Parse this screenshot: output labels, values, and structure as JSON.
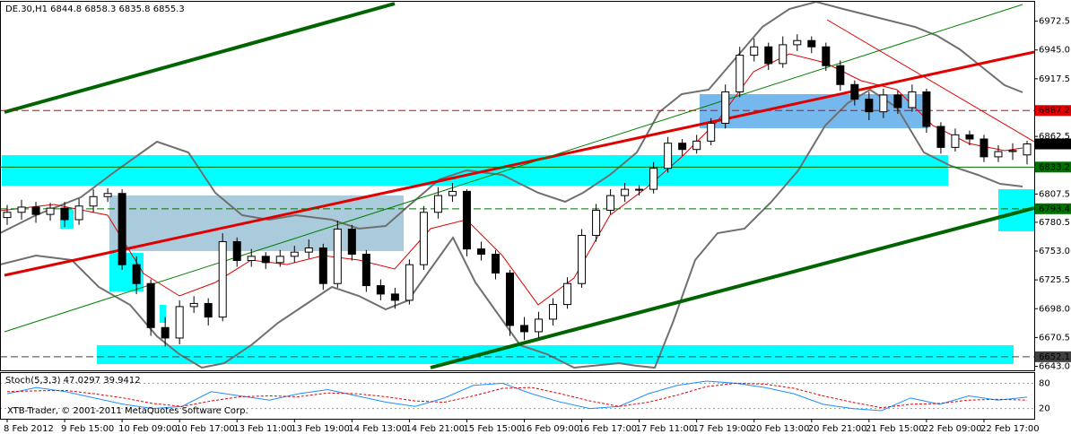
{
  "chart_data": [
    {
      "type": "candlestick",
      "symbol": "DE.30,H1",
      "categories": [
        "8 Feb 2012",
        null,
        null,
        null,
        "9 Feb 15:00",
        null,
        null,
        null,
        "10 Feb 09:00",
        null,
        null,
        null,
        "10 Feb 17:00",
        null,
        null,
        null,
        "13 Feb 11:00",
        null,
        null,
        null,
        "13 Feb 19:00",
        null,
        null,
        null,
        "14 Feb 13:00",
        null,
        null,
        null,
        "14 Feb 21:00",
        null,
        null,
        null,
        "15 Feb 15:00",
        null,
        null,
        null,
        "16 Feb 09:00",
        null,
        null,
        null,
        "16 Feb 17:00",
        null,
        null,
        null,
        "17 Feb 11:00",
        null,
        null,
        null,
        "17 Feb 19:00",
        null,
        null,
        null,
        "20 Feb 13:00",
        null,
        null,
        null,
        "20 Feb 21:00",
        null,
        null,
        null,
        "21 Feb 15:00",
        null,
        null,
        null,
        "22 Feb 09:00",
        null,
        null,
        null,
        "22 Feb 17:00",
        null,
        null,
        null
      ],
      "open": [
        6785,
        6790,
        6795,
        6788,
        6794,
        6783,
        6796,
        6805,
        6808,
        6740,
        6722,
        6680,
        6670,
        6700,
        6703,
        6690,
        6762,
        6744,
        6748,
        6742,
        6748,
        6752,
        6756,
        6722,
        6774,
        6750,
        6720,
        6712,
        6706,
        6740,
        6790,
        6806,
        6810,
        6755,
        6750,
        6732,
        6682,
        6676,
        6688,
        6702,
        6722,
        6768,
        6792,
        6806,
        6812,
        6812,
        6832,
        6856,
        6850,
        6858,
        6875,
        6905,
        6940,
        6948,
        6932,
        6950,
        6954,
        6948,
        6930,
        6912,
        6898,
        6886,
        6902,
        6890,
        6905,
        6872,
        6852,
        6864,
        6860,
        6843,
        6848,
        6844.8
      ],
      "high": [
        6797,
        6802,
        6800,
        6799,
        6800,
        6803,
        6812,
        6813,
        6812,
        6748,
        6726,
        6690,
        6706,
        6710,
        6708,
        6770,
        6766,
        6755,
        6752,
        6754,
        6758,
        6764,
        6760,
        6782,
        6778,
        6754,
        6726,
        6718,
        6745,
        6796,
        6814,
        6818,
        6812,
        6762,
        6754,
        6735,
        6690,
        6695,
        6708,
        6728,
        6774,
        6798,
        6812,
        6818,
        6816,
        6838,
        6862,
        6860,
        6864,
        6880,
        6912,
        6948,
        6956,
        6952,
        6958,
        6960,
        6958,
        6952,
        6935,
        6916,
        6905,
        6908,
        6906,
        6912,
        6908,
        6876,
        6870,
        6868,
        6864,
        6854,
        6856,
        6858.3
      ],
      "low": [
        6778,
        6783,
        6780,
        6782,
        6776,
        6778,
        6790,
        6800,
        6735,
        6712,
        6672,
        6662,
        6664,
        6694,
        6682,
        6686,
        6738,
        6738,
        6736,
        6738,
        6742,
        6746,
        6716,
        6718,
        6744,
        6714,
        6706,
        6698,
        6702,
        6735,
        6784,
        6800,
        6748,
        6744,
        6726,
        6672,
        6668,
        6670,
        6682,
        6698,
        6718,
        6762,
        6788,
        6800,
        6806,
        6808,
        6828,
        6844,
        6846,
        6854,
        6870,
        6900,
        6934,
        6926,
        6928,
        6944,
        6942,
        6925,
        6906,
        6892,
        6878,
        6880,
        6884,
        6886,
        6866,
        6846,
        6848,
        6854,
        6838,
        6838,
        6840,
        6835.8
      ],
      "close": [
        6790,
        6795,
        6788,
        6794,
        6783,
        6796,
        6805,
        6808,
        6740,
        6722,
        6680,
        6670,
        6700,
        6703,
        6690,
        6762,
        6744,
        6748,
        6742,
        6748,
        6752,
        6756,
        6722,
        6774,
        6750,
        6720,
        6712,
        6706,
        6740,
        6790,
        6806,
        6810,
        6755,
        6750,
        6732,
        6682,
        6676,
        6688,
        6702,
        6722,
        6768,
        6792,
        6806,
        6812,
        6812,
        6832,
        6856,
        6850,
        6858,
        6875,
        6905,
        6940,
        6948,
        6932,
        6950,
        6954,
        6948,
        6930,
        6912,
        6898,
        6886,
        6902,
        6890,
        6905,
        6872,
        6852,
        6864,
        6860,
        6843,
        6848,
        6849,
        6855.3
      ],
      "up_color": "#ffffff",
      "down_color": "#000000",
      "ylim": [
        6640,
        6991
      ],
      "yticks": [
        6972.5,
        {
          "value": 6945,
          "label": "6945.0"
        },
        6917.5,
        6862.5,
        6807.5,
        6780.5,
        {
          "value": 6753,
          "label": "6753.0"
        },
        6725.5,
        {
          "value": 6698,
          "label": "6698.0"
        },
        6670.5,
        {
          "value": 6643,
          "label": "6643.0"
        }
      ],
      "levels": [
        {
          "value": 6887.2,
          "color": "#e00000",
          "style": "dashed"
        },
        {
          "value": 6833.2,
          "color": "#007000",
          "style": "solid"
        },
        {
          "value": 6793.4,
          "color": "#007000",
          "style": "dashed"
        },
        {
          "value": 6652.1,
          "color": "#404040",
          "style": "dashed"
        }
      ],
      "copyright": "XTB-Trader, © 2001-2011 MetaQuotes Software Corp."
    },
    {
      "type": "line",
      "title": "Stoch(5,3,3)",
      "series": [
        {
          "color": "#1e90ff",
          "style": "solid",
          "values": [
            55,
            70,
            60,
            45,
            30,
            20,
            25,
            60,
            50,
            40,
            55,
            65,
            50,
            35,
            25,
            45,
            75,
            80,
            55,
            35,
            20,
            25,
            55,
            75,
            85,
            80,
            70,
            55,
            30,
            20,
            15,
            45,
            30,
            50,
            40,
            47.0297
          ]
        },
        {
          "color": "#e00000",
          "style": "dashed",
          "values": [
            60,
            62,
            63,
            55,
            45,
            32,
            25,
            38,
            48,
            50,
            48,
            57,
            55,
            48,
            38,
            35,
            50,
            68,
            70,
            55,
            38,
            25,
            35,
            52,
            72,
            80,
            78,
            68,
            50,
            35,
            22,
            30,
            32,
            40,
            42,
            39.9412
          ]
        }
      ],
      "ylim": [
        0,
        100
      ],
      "yticks": [
        80,
        20
      ]
    }
  ]
}
